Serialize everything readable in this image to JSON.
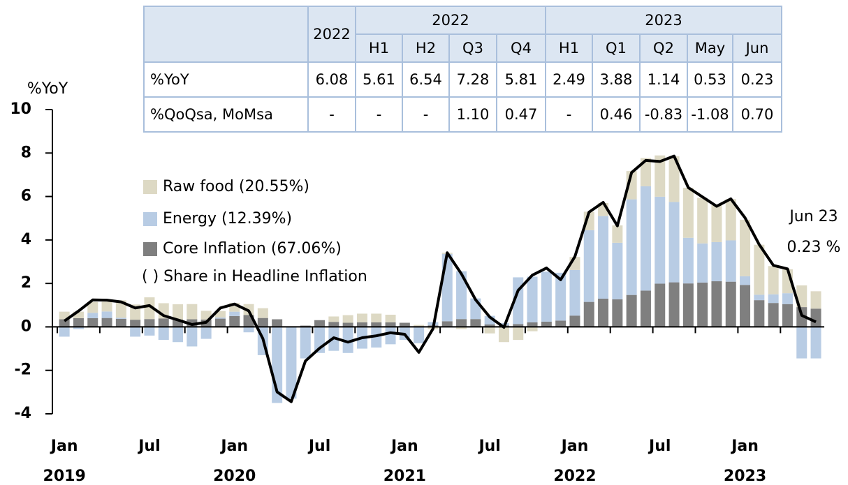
{
  "chart_data": {
    "type": "stacked-bar-line",
    "y_label": "%YoY",
    "ylim": [
      -4,
      10
    ],
    "yticks": [
      -4,
      -2,
      0,
      2,
      4,
      6,
      8,
      10
    ],
    "categories": [
      "Jan",
      null,
      null,
      null,
      null,
      null,
      "Jul",
      null,
      null,
      null,
      null,
      null,
      "Jan",
      null,
      null,
      null,
      null,
      null,
      "Jul",
      null,
      null,
      null,
      null,
      null,
      "Jan",
      null,
      null,
      null,
      null,
      null,
      "Jul",
      null,
      null,
      null,
      null,
      null,
      "Jan",
      null,
      null,
      null,
      null,
      null,
      "Jul",
      null,
      null,
      null,
      null,
      null,
      "Jan",
      null,
      null,
      null,
      null,
      null
    ],
    "years": [
      "2019",
      null,
      null,
      null,
      null,
      null,
      null,
      null,
      null,
      null,
      null,
      null,
      "2020",
      null,
      null,
      null,
      null,
      null,
      null,
      null,
      null,
      null,
      null,
      null,
      "2021",
      null,
      null,
      null,
      null,
      null,
      null,
      null,
      null,
      null,
      null,
      null,
      "2022",
      null,
      null,
      null,
      null,
      null,
      null,
      null,
      null,
      null,
      null,
      null,
      "2023",
      null,
      null,
      null,
      null,
      null
    ],
    "series": [
      {
        "name": "Core Inflation (67.06%)",
        "color": "#7f7f7f",
        "values": [
          0.35,
          0.4,
          0.4,
          0.41,
          0.37,
          0.33,
          0.36,
          0.39,
          0.34,
          0.35,
          0.34,
          0.38,
          0.5,
          0.55,
          0.41,
          0.35,
          0.01,
          0.06,
          0.31,
          0.23,
          0.19,
          0.21,
          0.21,
          0.21,
          0.19,
          0.04,
          0.07,
          0.26,
          0.36,
          0.36,
          0.11,
          0.07,
          0.13,
          0.21,
          0.24,
          0.29,
          0.52,
          1.15,
          1.3,
          1.27,
          1.47,
          1.67,
          1.99,
          2.05,
          2.0,
          2.04,
          2.1,
          2.08,
          1.93,
          1.23,
          1.1,
          1.05,
          0.91,
          0.84
        ]
      },
      {
        "name": "Energy (12.39%)",
        "color": "#b8cce4",
        "values": [
          -0.45,
          -0.1,
          0.25,
          0.3,
          0.05,
          -0.45,
          -0.4,
          -0.6,
          -0.7,
          -0.9,
          -0.55,
          0.05,
          0.2,
          -0.25,
          -1.3,
          -3.5,
          -3.3,
          -1.45,
          -1.2,
          -1.1,
          -1.2,
          -1.0,
          -0.95,
          -0.8,
          -0.6,
          -0.75,
          0.15,
          3.1,
          2.2,
          0.95,
          0.4,
          0.1,
          2.15,
          2.1,
          2.3,
          2.2,
          2.1,
          3.3,
          3.8,
          2.6,
          4.4,
          4.8,
          4.0,
          3.7,
          2.1,
          1.8,
          1.8,
          1.9,
          0.4,
          0.25,
          0.4,
          0.5,
          -1.45,
          -1.45
        ]
      },
      {
        "name": "Raw food (20.55%)",
        "color": "#ddd9c4",
        "values": [
          0.35,
          0.3,
          0.5,
          0.45,
          0.8,
          0.7,
          1.0,
          0.7,
          0.7,
          0.7,
          0.4,
          0.3,
          0.4,
          0.5,
          0.45,
          0,
          0,
          0,
          0,
          0.25,
          0.35,
          0.4,
          0.4,
          0.35,
          0,
          0.05,
          -0.1,
          0.05,
          -0.1,
          0,
          -0.3,
          -0.7,
          -0.6,
          -0.2,
          0,
          0,
          0.6,
          0.85,
          0.6,
          0.8,
          1.3,
          1.3,
          1.9,
          2.1,
          2.3,
          2.1,
          1.7,
          1.9,
          2.6,
          2.3,
          1.3,
          1.1,
          1.0,
          0.8
        ]
      }
    ],
    "line": {
      "color": "#000000",
      "values": [
        0.27,
        0.73,
        1.24,
        1.23,
        1.15,
        0.87,
        0.98,
        0.52,
        0.32,
        0.11,
        0.21,
        0.87,
        1.05,
        0.74,
        -0.54,
        -2.99,
        -3.44,
        -1.57,
        -0.98,
        -0.5,
        -0.7,
        -0.5,
        -0.41,
        -0.27,
        -0.34,
        -1.17,
        -0.08,
        3.41,
        2.44,
        1.25,
        0.45,
        -0.02,
        1.68,
        2.38,
        2.71,
        2.17,
        3.23,
        5.28,
        5.73,
        4.65,
        7.1,
        7.66,
        7.61,
        7.86,
        6.41,
        5.98,
        5.55,
        5.89,
        5.02,
        3.79,
        2.83,
        2.67,
        0.53,
        0.23
      ]
    },
    "legend_note": "( ) Share in Headline Inflation",
    "annotation": {
      "text": "Jun 23",
      "value": 0.23,
      "value_label": "0.23 %"
    }
  },
  "table": {
    "header": [
      "2022",
      "2022",
      "2023"
    ],
    "subheader": [
      "H1",
      "H2",
      "Q3",
      "Q4",
      "H1",
      "Q1",
      "Q2",
      "May",
      "Jun"
    ],
    "rows": [
      [
        "%YoY",
        "6.08",
        "5.61",
        "6.54",
        "7.28",
        "5.81",
        "2.49",
        "3.88",
        "1.14",
        "0.53",
        "0.23"
      ],
      [
        "%QoQsa, MoMsa",
        "-",
        "-",
        "-",
        "1.10",
        "0.47",
        "-",
        "0.46",
        "-0.83",
        "-1.08",
        "0.70"
      ]
    ]
  }
}
